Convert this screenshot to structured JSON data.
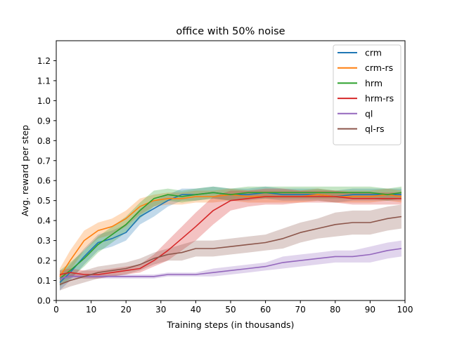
{
  "chart_data": {
    "type": "line",
    "title": "office with 50% noise",
    "xlabel": "Training steps (in thousands)",
    "ylabel": "Avg. reward per step",
    "xlim": [
      0,
      100
    ],
    "ylim": [
      0,
      1.3
    ],
    "xticks": [
      0,
      10,
      20,
      30,
      40,
      50,
      60,
      70,
      80,
      90,
      100
    ],
    "yticks": [
      0.0,
      0.1,
      0.2,
      0.3,
      0.4,
      0.5,
      0.6,
      0.7,
      0.8,
      0.9,
      1.0,
      1.1,
      1.2
    ],
    "grid": false,
    "legend_position": "top-right",
    "shaded_band": "variability band around each mean curve",
    "series": [
      {
        "name": "crm",
        "color": "#1f77b4",
        "x": [
          1,
          4,
          8,
          12,
          16,
          20,
          24,
          28,
          32,
          36,
          40,
          45,
          50,
          55,
          60,
          65,
          70,
          75,
          80,
          85,
          90,
          95,
          99
        ],
        "y": [
          0.09,
          0.14,
          0.22,
          0.29,
          0.31,
          0.34,
          0.42,
          0.46,
          0.5,
          0.53,
          0.53,
          0.54,
          0.53,
          0.53,
          0.54,
          0.53,
          0.53,
          0.53,
          0.52,
          0.53,
          0.53,
          0.53,
          0.53
        ],
        "band": [
          0.04,
          0.04,
          0.04,
          0.04,
          0.04,
          0.04,
          0.04,
          0.04,
          0.03,
          0.03,
          0.03,
          0.03,
          0.03,
          0.03,
          0.03,
          0.03,
          0.03,
          0.03,
          0.03,
          0.03,
          0.03,
          0.03,
          0.03
        ]
      },
      {
        "name": "crm-rs",
        "color": "#ff7f0e",
        "x": [
          1,
          4,
          8,
          12,
          16,
          20,
          24,
          28,
          32,
          36,
          40,
          45,
          50,
          55,
          60,
          65,
          70,
          75,
          80,
          85,
          90,
          95,
          99
        ],
        "y": [
          0.12,
          0.2,
          0.3,
          0.35,
          0.37,
          0.41,
          0.47,
          0.5,
          0.51,
          0.51,
          0.52,
          0.52,
          0.53,
          0.52,
          0.52,
          0.52,
          0.52,
          0.53,
          0.52,
          0.52,
          0.52,
          0.53,
          0.52
        ],
        "band": [
          0.04,
          0.05,
          0.05,
          0.04,
          0.04,
          0.04,
          0.04,
          0.03,
          0.03,
          0.03,
          0.03,
          0.03,
          0.03,
          0.03,
          0.03,
          0.03,
          0.03,
          0.03,
          0.03,
          0.03,
          0.03,
          0.03,
          0.03
        ]
      },
      {
        "name": "hrm",
        "color": "#2ca02c",
        "x": [
          1,
          4,
          8,
          12,
          16,
          20,
          24,
          28,
          32,
          36,
          40,
          45,
          50,
          55,
          60,
          65,
          70,
          75,
          80,
          85,
          90,
          95,
          99
        ],
        "y": [
          0.11,
          0.15,
          0.21,
          0.28,
          0.33,
          0.38,
          0.45,
          0.51,
          0.53,
          0.52,
          0.53,
          0.54,
          0.53,
          0.54,
          0.54,
          0.54,
          0.54,
          0.54,
          0.54,
          0.54,
          0.54,
          0.53,
          0.54
        ],
        "band": [
          0.04,
          0.04,
          0.04,
          0.04,
          0.04,
          0.04,
          0.04,
          0.04,
          0.03,
          0.03,
          0.03,
          0.03,
          0.03,
          0.03,
          0.03,
          0.03,
          0.03,
          0.03,
          0.03,
          0.03,
          0.03,
          0.03,
          0.03
        ]
      },
      {
        "name": "hrm-rs",
        "color": "#d62728",
        "x": [
          1,
          4,
          8,
          12,
          16,
          20,
          24,
          28,
          32,
          36,
          40,
          45,
          50,
          55,
          60,
          65,
          70,
          75,
          80,
          85,
          90,
          95,
          99
        ],
        "y": [
          0.13,
          0.14,
          0.13,
          0.13,
          0.14,
          0.15,
          0.16,
          0.2,
          0.25,
          0.31,
          0.37,
          0.45,
          0.5,
          0.51,
          0.52,
          0.52,
          0.52,
          0.52,
          0.52,
          0.51,
          0.51,
          0.51,
          0.51
        ],
        "band": [
          0.02,
          0.02,
          0.02,
          0.02,
          0.02,
          0.02,
          0.02,
          0.03,
          0.05,
          0.06,
          0.07,
          0.07,
          0.05,
          0.04,
          0.04,
          0.04,
          0.03,
          0.03,
          0.03,
          0.03,
          0.03,
          0.03,
          0.03
        ]
      },
      {
        "name": "ql",
        "color": "#9467bd",
        "x": [
          1,
          4,
          8,
          12,
          16,
          20,
          24,
          28,
          32,
          36,
          40,
          45,
          50,
          55,
          60,
          65,
          70,
          75,
          80,
          85,
          90,
          95,
          99
        ],
        "y": [
          0.11,
          0.12,
          0.12,
          0.12,
          0.12,
          0.12,
          0.12,
          0.12,
          0.13,
          0.13,
          0.13,
          0.14,
          0.15,
          0.16,
          0.17,
          0.19,
          0.2,
          0.21,
          0.22,
          0.22,
          0.23,
          0.25,
          0.26
        ],
        "band": [
          0.01,
          0.01,
          0.01,
          0.01,
          0.01,
          0.01,
          0.01,
          0.01,
          0.01,
          0.01,
          0.01,
          0.02,
          0.02,
          0.02,
          0.02,
          0.03,
          0.03,
          0.03,
          0.03,
          0.03,
          0.04,
          0.04,
          0.04
        ]
      },
      {
        "name": "ql-rs",
        "color": "#8c564b",
        "x": [
          1,
          4,
          8,
          12,
          16,
          20,
          24,
          28,
          32,
          36,
          40,
          45,
          50,
          55,
          60,
          65,
          70,
          75,
          80,
          85,
          90,
          95,
          99
        ],
        "y": [
          0.08,
          0.1,
          0.12,
          0.14,
          0.15,
          0.16,
          0.18,
          0.21,
          0.23,
          0.24,
          0.26,
          0.26,
          0.27,
          0.28,
          0.29,
          0.31,
          0.34,
          0.36,
          0.38,
          0.39,
          0.39,
          0.41,
          0.42
        ],
        "band": [
          0.03,
          0.03,
          0.03,
          0.03,
          0.03,
          0.03,
          0.03,
          0.03,
          0.03,
          0.04,
          0.04,
          0.04,
          0.04,
          0.04,
          0.04,
          0.05,
          0.05,
          0.05,
          0.06,
          0.06,
          0.06,
          0.06,
          0.06
        ]
      }
    ]
  }
}
